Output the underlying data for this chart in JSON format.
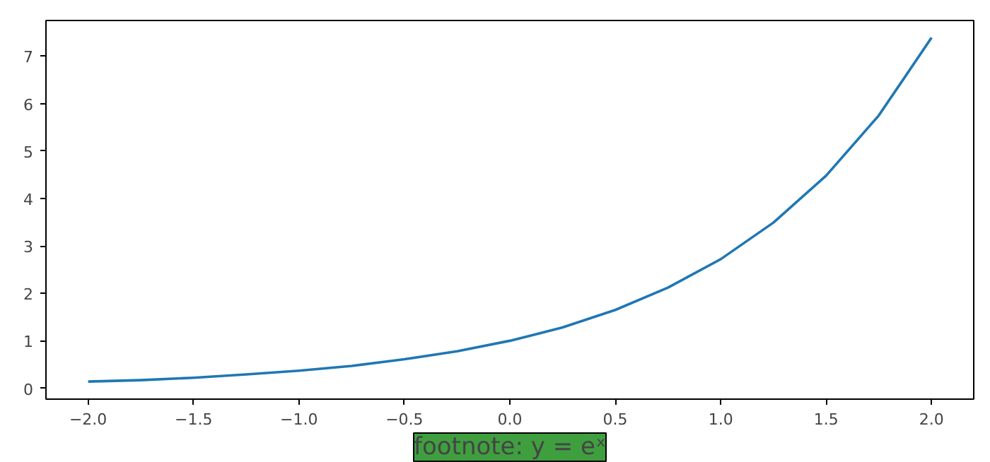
{
  "chart_data": {
    "type": "line",
    "x": [
      -2.0,
      -1.75,
      -1.5,
      -1.25,
      -1.0,
      -0.75,
      -0.5,
      -0.25,
      0.0,
      0.25,
      0.5,
      0.75,
      1.0,
      1.25,
      1.5,
      1.75,
      2.0
    ],
    "series": [
      {
        "color": "#1f77b4",
        "values": [
          0.14,
          0.17,
          0.22,
          0.29,
          0.37,
          0.47,
          0.61,
          0.78,
          1.0,
          1.28,
          1.65,
          2.12,
          2.72,
          3.49,
          4.48,
          5.75,
          7.39
        ]
      }
    ],
    "xlim": [
      -2.2,
      2.2
    ],
    "ylim": [
      -0.23,
      7.75
    ],
    "xticks": [
      {
        "value": -2.0,
        "label": "−2.0"
      },
      {
        "value": -1.5,
        "label": "−1.5"
      },
      {
        "value": -1.0,
        "label": "−1.0"
      },
      {
        "value": -0.5,
        "label": "−0.5"
      },
      {
        "value": 0.0,
        "label": "0.0"
      },
      {
        "value": 0.5,
        "label": "0.5"
      },
      {
        "value": 1.0,
        "label": "1.0"
      },
      {
        "value": 1.5,
        "label": "1.5"
      },
      {
        "value": 2.0,
        "label": "2.0"
      }
    ],
    "yticks": [
      0,
      1,
      2,
      3,
      4,
      5,
      6,
      7
    ],
    "grid": false,
    "marker": "none",
    "line_style": "solid",
    "annotations": [
      "footnote: y = eˣ"
    ]
  }
}
